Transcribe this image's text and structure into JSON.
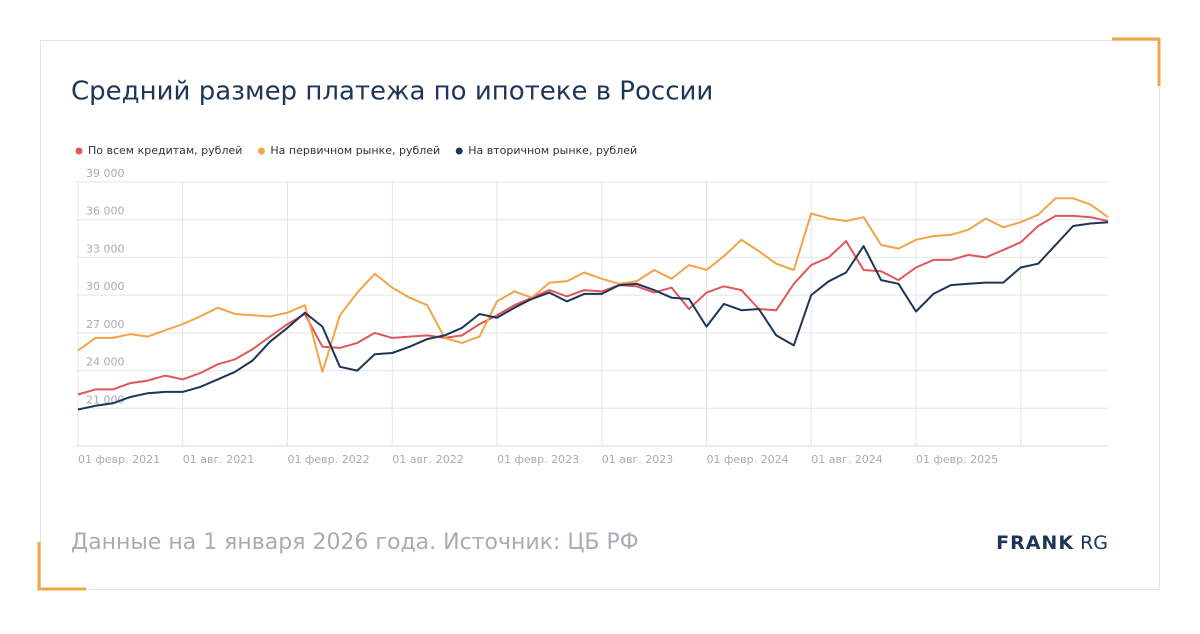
{
  "chart_data": {
    "type": "line",
    "title": "Средний размер платежа по ипотеке в России",
    "footer": "Данные на 1 января 2026 года. Источник: ЦБ РФ",
    "brand": {
      "bold": "FRANK",
      "light": "RG"
    },
    "categories": [
      "01 февр. 2021",
      null,
      null,
      null,
      null,
      null,
      "01 авг. 2021",
      null,
      null,
      null,
      null,
      null,
      "01 февр. 2022",
      null,
      null,
      null,
      null,
      null,
      "01 авг. 2022",
      null,
      null,
      null,
      null,
      null,
      "01 февр. 2023",
      null,
      null,
      null,
      null,
      null,
      "01 авг. 2023",
      null,
      null,
      null,
      null,
      null,
      "01 февр. 2024",
      null,
      null,
      null,
      null,
      null,
      "01 авг. 2024",
      null,
      null,
      null,
      null,
      null,
      "01 февр. 2025",
      null,
      null,
      null,
      null,
      null,
      null,
      null,
      null,
      null,
      null,
      null
    ],
    "ylim": [
      18000,
      39000
    ],
    "yticks": [
      {
        "value": 21000,
        "label": "21 000"
      },
      {
        "value": 24000,
        "label": "24 000"
      },
      {
        "value": 27000,
        "label": "27 000"
      },
      {
        "value": 30000,
        "label": "30 000"
      },
      {
        "value": 33000,
        "label": "33 000"
      },
      {
        "value": 36000,
        "label": "36 000"
      },
      {
        "value": 39000,
        "label": "39 000"
      }
    ],
    "grid": true,
    "series": [
      {
        "name": "По всем кредитам, рублей",
        "color": "#e0575b",
        "values": [
          22100,
          22500,
          22500,
          23000,
          23200,
          23600,
          23300,
          23800,
          24500,
          24900,
          25700,
          26700,
          27700,
          28500,
          25900,
          25800,
          26200,
          27000,
          26600,
          26700,
          26800,
          26600,
          26800,
          27700,
          28400,
          29200,
          29800,
          30400,
          29900,
          30400,
          30300,
          30800,
          30700,
          30200,
          30600,
          28900,
          30200,
          30700,
          30400,
          28900,
          28800,
          30900,
          32400,
          33000,
          34300,
          32000,
          31900,
          31200,
          32200,
          32800,
          32800,
          33200,
          33000,
          33600,
          34200,
          35500,
          36300,
          36300,
          36200,
          35900
        ]
      },
      {
        "name": "На первичном рынке, рублей",
        "color": "#f4a446",
        "values": [
          25600,
          26600,
          26600,
          26900,
          26700,
          27200,
          27700,
          28300,
          29000,
          28500,
          28400,
          28300,
          28600,
          29200,
          23900,
          28400,
          30200,
          31700,
          30600,
          29800,
          29200,
          26600,
          26200,
          26700,
          29500,
          30300,
          29800,
          31000,
          31100,
          31800,
          31300,
          30900,
          31100,
          32000,
          31300,
          32400,
          32000,
          33100,
          34400,
          33500,
          32500,
          32000,
          36500,
          36100,
          35900,
          36200,
          34000,
          33700,
          34400,
          34700,
          34800,
          35200,
          36100,
          35400,
          35800,
          36400,
          37700,
          37700,
          37200,
          36200
        ]
      },
      {
        "name": "На вторичном рынке, рублей",
        "color": "#1d3557",
        "values": [
          20900,
          21200,
          21400,
          21900,
          22200,
          22300,
          22300,
          22700,
          23300,
          23900,
          24800,
          26300,
          27400,
          28600,
          27500,
          24300,
          24000,
          25300,
          25400,
          25900,
          26500,
          26800,
          27400,
          28500,
          28200,
          29000,
          29700,
          30200,
          29500,
          30100,
          30100,
          30800,
          30900,
          30400,
          29800,
          29700,
          27500,
          29300,
          28800,
          28900,
          26800,
          26000,
          30000,
          31100,
          31800,
          33900,
          31200,
          30900,
          28700,
          30100,
          30800,
          30900,
          31000,
          31000,
          32200,
          32500,
          34000,
          35500,
          35700,
          35800
        ]
      }
    ]
  }
}
